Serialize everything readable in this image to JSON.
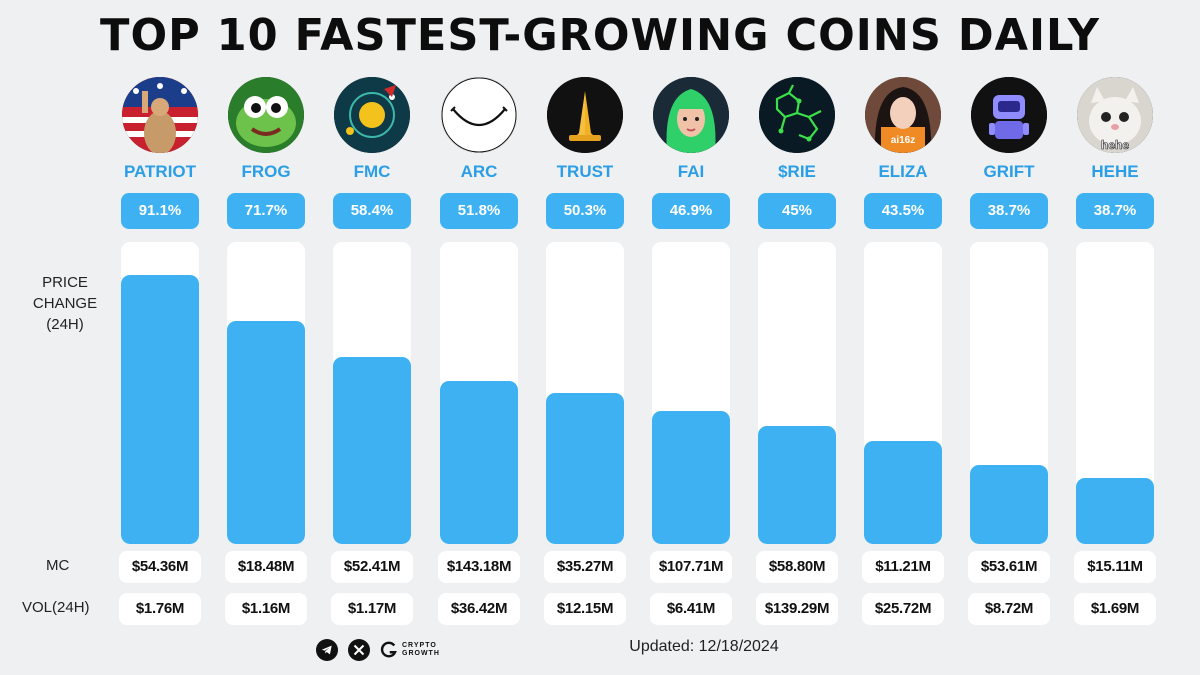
{
  "title": "TOP 10 FASTEST-GROWING COINS DAILY",
  "labels": {
    "price_change": [
      "PRICE",
      "CHANGE",
      "(24H)"
    ],
    "mc": "MC",
    "vol": "VOL(24H)"
  },
  "footer": {
    "updated": "Updated: 12/18/2024",
    "brand_line1": "CRYPTO",
    "brand_line2": "GROWTH",
    "icons": [
      "telegram-icon",
      "x-icon",
      "crypto-growth-logo"
    ]
  },
  "colors": {
    "accent": "#3db1f2",
    "name_text": "#2b9ee6",
    "background": "#eef0f2"
  },
  "chart_data": {
    "type": "bar",
    "title": "TOP 10 FASTEST-GROWING COINS DAILY",
    "xlabel": "",
    "ylabel": "PRICE CHANGE (24H)",
    "unit": "%",
    "categories": [
      "PATRIOT",
      "FROG",
      "FMC",
      "ARC",
      "TRUST",
      "FAI",
      "$RIE",
      "ELIZA",
      "GRIFT",
      "HEHE"
    ],
    "values": [
      91.1,
      71.7,
      58.4,
      51.8,
      50.3,
      46.9,
      45,
      43.5,
      38.7,
      38.7
    ],
    "value_labels": [
      "91.1%",
      "71.7%",
      "58.4%",
      "51.8%",
      "50.3%",
      "46.9%",
      "45%",
      "43.5%",
      "38.7%",
      "38.7%"
    ],
    "bar_fill": [
      0.89,
      0.74,
      0.62,
      0.54,
      0.5,
      0.44,
      0.39,
      0.34,
      0.26,
      0.22
    ],
    "mc": [
      "$54.36M",
      "$18.48M",
      "$52.41M",
      "$143.18M",
      "$35.27M",
      "$107.71M",
      "$58.80M",
      "$11.21M",
      "$53.61M",
      "$15.11M"
    ],
    "vol_24h": [
      "$1.76M",
      "$1.16M",
      "$1.17M",
      "$36.42M",
      "$12.15M",
      "$6.41M",
      "$139.29M",
      "$25.72M",
      "$8.72M",
      "$1.69M"
    ],
    "avatar_icons": [
      "patriot-avatar-icon",
      "frog-avatar-icon",
      "fmc-avatar-icon",
      "arc-avatar-icon",
      "trust-avatar-icon",
      "fai-avatar-icon",
      "rie-avatar-icon",
      "eliza-avatar-icon",
      "grift-avatar-icon",
      "hehe-avatar-icon"
    ],
    "grid": false,
    "legend": "none"
  }
}
